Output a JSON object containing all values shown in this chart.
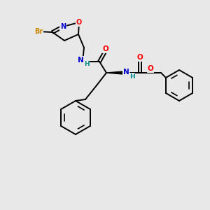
{
  "bg_color": "#e8e8e8",
  "bond_color": "#000000",
  "atom_colors": {
    "N": "#0000cd",
    "O": "#ff0000",
    "Br": "#cc8800",
    "H": "#008888",
    "C": "#000000"
  }
}
